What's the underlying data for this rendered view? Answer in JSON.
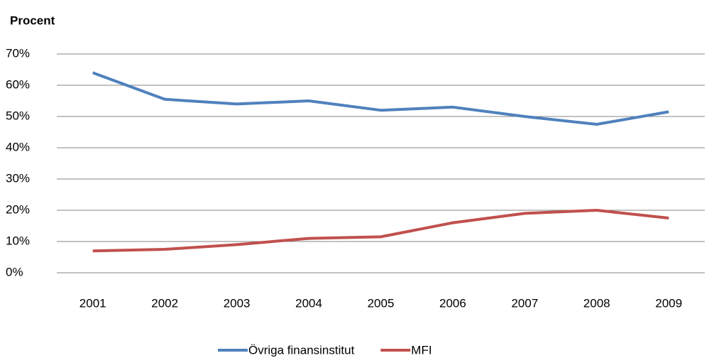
{
  "chart_data": {
    "type": "line",
    "title": "Procent",
    "categories": [
      "2001",
      "2002",
      "2003",
      "2004",
      "2005",
      "2006",
      "2007",
      "2008",
      "2009"
    ],
    "series": [
      {
        "name": "Övriga finansinstitut",
        "color": "#4f81bd",
        "values": [
          64,
          55.5,
          54,
          55,
          52,
          53,
          50,
          47.5,
          51.5
        ]
      },
      {
        "name": "MFI",
        "color": "#c0504d",
        "values": [
          7,
          7.5,
          9,
          11,
          11.5,
          16,
          19,
          20,
          17.5
        ]
      }
    ],
    "ylim": [
      0,
      70
    ],
    "yticks": [
      {
        "value": 0,
        "label": "0%"
      },
      {
        "value": 10,
        "label": "10%"
      },
      {
        "value": 20,
        "label": "20%"
      },
      {
        "value": 30,
        "label": "30%"
      },
      {
        "value": 40,
        "label": "40%"
      },
      {
        "value": 50,
        "label": "50%"
      },
      {
        "value": 60,
        "label": "60%"
      },
      {
        "value": 70,
        "label": "70%"
      }
    ],
    "grid": true,
    "legend": "bottom"
  }
}
